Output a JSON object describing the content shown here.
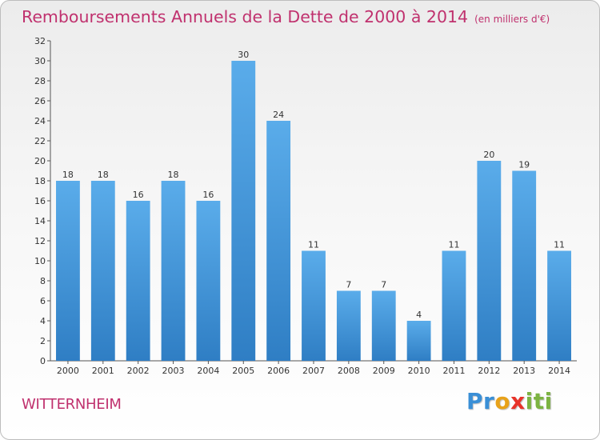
{
  "chart_data": {
    "type": "bar",
    "title": "Remboursements Annuels de la Dette de 2000 à 2014",
    "unit": "(en milliers d'€)",
    "categories": [
      "2000",
      "2001",
      "2002",
      "2003",
      "2004",
      "2005",
      "2006",
      "2007",
      "2008",
      "2009",
      "2010",
      "2011",
      "2012",
      "2013",
      "2014"
    ],
    "values": [
      18,
      18,
      16,
      18,
      16,
      30,
      24,
      11,
      7,
      7,
      4,
      11,
      20,
      19,
      11
    ],
    "ylim": [
      0,
      32
    ],
    "yticks": [
      0,
      2,
      4,
      6,
      8,
      10,
      12,
      14,
      16,
      18,
      20,
      22,
      24,
      26,
      28,
      30,
      32
    ],
    "xlabel": "",
    "ylabel": "",
    "grid": false,
    "bar_color": "#3a8fd6"
  },
  "footer": {
    "city": "WITTERNHEIM",
    "brand_letters": [
      {
        "char": "P",
        "color": "#3a8fd6"
      },
      {
        "char": "r",
        "color": "#3a8fd6"
      },
      {
        "char": "o",
        "color": "#e8a21a"
      },
      {
        "char": "x",
        "color": "#e8332a"
      },
      {
        "char": "i",
        "color": "#7cb342"
      },
      {
        "char": "t",
        "color": "#7cb342"
      },
      {
        "char": "i",
        "color": "#7cb342"
      }
    ]
  }
}
